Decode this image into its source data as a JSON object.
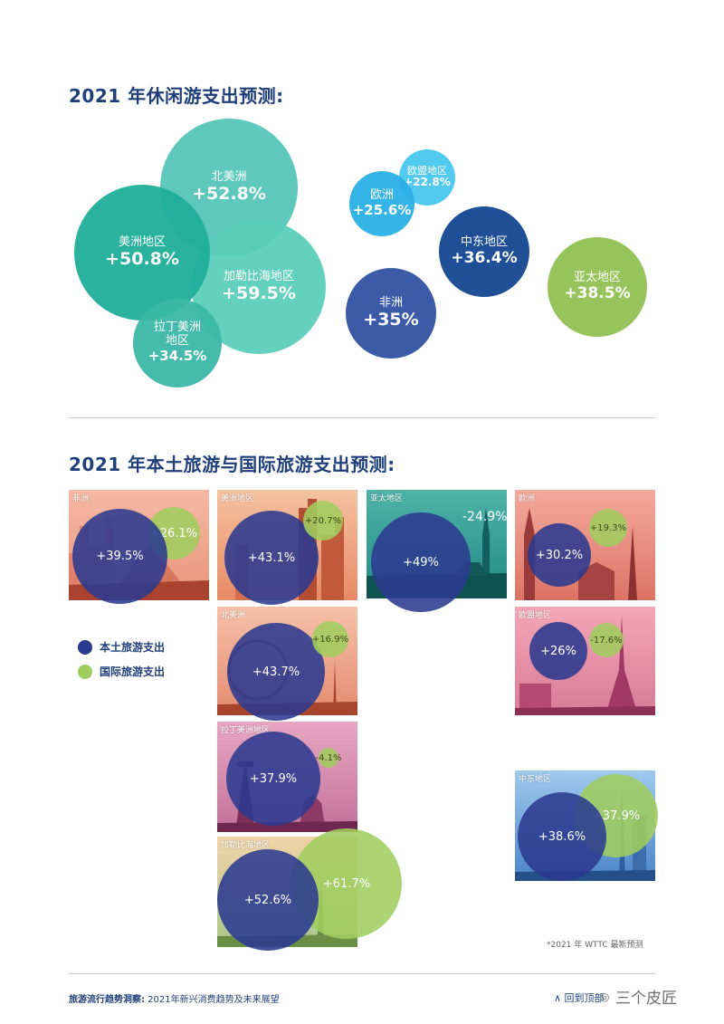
{
  "section1": {
    "title": "2021 年休闲游支出预测:"
  },
  "section2": {
    "title": "2021 年本土旅游与国际旅游支出预测:"
  },
  "chart_data": [
    {
      "type": "bubble",
      "title": "2021 年休闲游支出预测:",
      "items": [
        {
          "region": "北美洲",
          "value": "+52.8%",
          "color": "#4fc3b5"
        },
        {
          "region": "美洲地区",
          "value": "+50.8%",
          "color": "#1fae9a"
        },
        {
          "region": "加勒比海地区",
          "value": "+59.5%",
          "color": "#57cdb9"
        },
        {
          "region": "拉丁美洲地区",
          "value": "+34.5%",
          "color": "#3bb8a7"
        },
        {
          "region": "欧盟地区",
          "value": "+22.8%",
          "color": "#49c6ee"
        },
        {
          "region": "欧洲",
          "value": "+25.6%",
          "color": "#2ab0e6"
        },
        {
          "region": "中东地区",
          "value": "+36.4%",
          "color": "#1f4f97"
        },
        {
          "region": "非洲",
          "value": "+35%",
          "color": "#3b5aa8"
        },
        {
          "region": "亚太地区",
          "value": "+38.5%",
          "color": "#96c45a"
        }
      ]
    },
    {
      "type": "bubble",
      "title": "2021 年本土旅游与国际旅游支出预测:",
      "series": [
        {
          "name": "本土旅游支出",
          "color": "#2b3a90"
        },
        {
          "name": "国际旅游支出",
          "color": "#a0cd5f"
        }
      ],
      "items": [
        {
          "region": "非洲",
          "domestic": "+39.5%",
          "international": "+26.1%"
        },
        {
          "region": "美洲地区",
          "domestic": "+43.1%",
          "international": "+20.7%"
        },
        {
          "region": "亚太地区",
          "domestic": "+49%",
          "international": "-24.9%"
        },
        {
          "region": "欧洲",
          "domestic": "+30.2%",
          "international": "+19.3%"
        },
        {
          "region": "北美洲",
          "domestic": "+43.7%",
          "international": "+16.9%"
        },
        {
          "region": "欧盟地区",
          "domestic": "+26%",
          "international": "-17.6%"
        },
        {
          "region": "拉丁美洲地区",
          "domestic": "+37.9%",
          "international": "-4.1%"
        },
        {
          "region": "中东地区",
          "domestic": "+38.6%",
          "international": "+37.9%"
        },
        {
          "region": "加勒比海地区",
          "domestic": "+52.6%",
          "international": "+61.7%"
        }
      ]
    }
  ],
  "bubbles": {
    "na": {
      "label": "北美洲",
      "value": "+52.8%"
    },
    "am": {
      "label": "美洲地区",
      "value": "+50.8%"
    },
    "car": {
      "label": "加勒比海地区",
      "value": "+59.5%"
    },
    "lat": {
      "label1": "拉丁美洲",
      "label2": "地区",
      "value": "+34.5%"
    },
    "eu_union": {
      "label": "欧盟地区",
      "value": "+22.8%"
    },
    "eu": {
      "label": "欧洲",
      "value": "+25.6%"
    },
    "me": {
      "label": "中东地区",
      "value": "+36.4%"
    },
    "af": {
      "label": "非洲",
      "value": "+35%"
    },
    "ap": {
      "label": "亚太地区",
      "value": "+38.5%"
    }
  },
  "tiles": {
    "af": {
      "label": "非洲",
      "dom": "+39.5%",
      "intl": "+26.1%"
    },
    "am": {
      "label": "美洲地区",
      "dom": "+43.1%",
      "intl": "+20.7%"
    },
    "ap": {
      "label": "亚太地区",
      "dom": "+49%",
      "intl": "-24.9%"
    },
    "eu": {
      "label": "欧洲",
      "dom": "+30.2%",
      "intl": "+19.3%"
    },
    "na": {
      "label": "北美洲",
      "dom": "+43.7%",
      "intl": "+16.9%"
    },
    "eu_union": {
      "label": "欧盟地区",
      "dom": "+26%",
      "intl": "-17.6%"
    },
    "lat": {
      "label": "拉丁美洲地区",
      "dom": "+37.9%",
      "intl": "-4.1%"
    },
    "me": {
      "label": "中东地区",
      "dom": "+38.6%",
      "intl": "+37.9%"
    },
    "car": {
      "label": "加勒比海地区",
      "dom": "+52.6%",
      "intl": "+61.7%"
    }
  },
  "legend": {
    "domestic": "本土旅游支出",
    "international": "国际旅游支出"
  },
  "note": "*2021 年 WTTC 最新预测",
  "footer": {
    "bold": "旅游流行趋势洞察:",
    "rest": " 2021年新兴消费趋势及未来展望"
  },
  "back_to_top": "∧ 回到顶部",
  "watermark": "三个皮匠",
  "icons": {
    "watermark": "wechat-icon"
  }
}
